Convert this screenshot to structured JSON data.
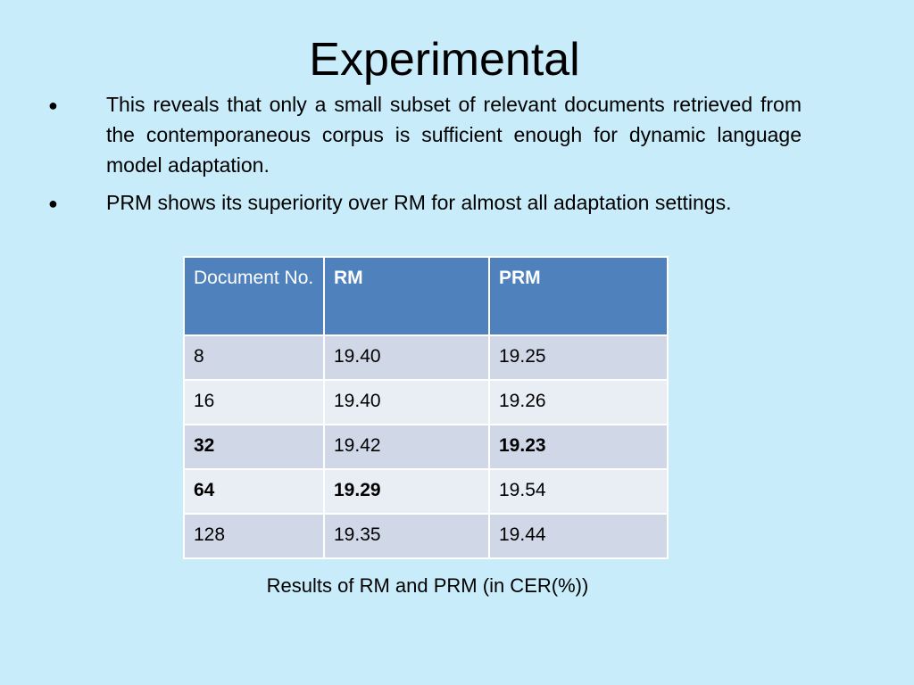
{
  "slide": {
    "title": "Experimental",
    "bullets": [
      {
        "marker": "●",
        "text": "This reveals that only a small subset of relevant documents retrieved from the contemporaneous corpus is sufficient enough for dynamic language model adaptation."
      },
      {
        "marker": "●",
        "text": "PRM shows its superiority over RM for almost all adaptation settings."
      }
    ],
    "table": {
      "headers": [
        "Document No.",
        "RM",
        "PRM"
      ],
      "rows": [
        [
          "8",
          "19.40",
          "19.25"
        ],
        [
          "16",
          "19.40",
          "19.26"
        ],
        [
          "32",
          "19.42",
          "19.23"
        ],
        [
          "64",
          "19.29",
          "19.54"
        ],
        [
          "128",
          "19.35",
          "19.44"
        ]
      ]
    },
    "caption": "Results  of RM and PRM (in CER(%))"
  },
  "colors": {
    "background": "#c8ecfa",
    "table_header": "#4f81bd",
    "row_odd": "#d0d8e8",
    "row_even": "#e9edf4"
  }
}
